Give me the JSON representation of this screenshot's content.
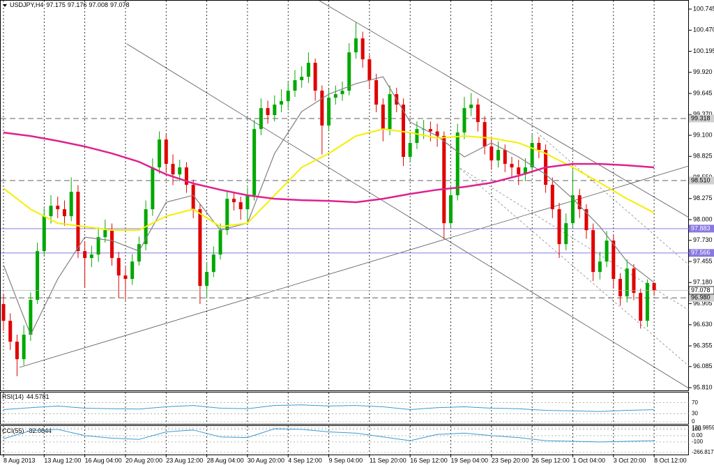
{
  "chart_data": {
    "type": "candlestick",
    "title": "USDJPY,H4",
    "up_color": "#00a800",
    "down_color": "#e00000",
    "grid": "x",
    "ylim": [
      95.774,
      100.827
    ],
    "yticks": [
      100.745,
      {
        "value": 100.47,
        "label": "100.470"
      },
      100.195,
      {
        "value": 99.92,
        "label": "99.920"
      },
      99.645,
      {
        "value": 99.37,
        "label": "99.370"
      },
      {
        "value": 99.1,
        "label": "99.100"
      },
      98.825,
      {
        "value": 98.55,
        "label": "98.550"
      },
      98.275,
      {
        "value": 98,
        "label": "98.000"
      },
      {
        "value": 97.73,
        "label": "97.730"
      },
      97.455,
      {
        "value": 97.18,
        "label": "97.180"
      },
      96.905,
      {
        "value": 96.63,
        "label": "96.630"
      },
      96.355,
      96.085,
      {
        "value": 95.81,
        "label": "95.810"
      }
    ],
    "categories": [
      "8 Aug 2013",
      null,
      null,
      null,
      null,
      null,
      "13 Aug 12:00",
      null,
      null,
      null,
      null,
      null,
      "16 Aug 04:00",
      null,
      null,
      null,
      null,
      null,
      "20 Aug 20:00",
      null,
      null,
      null,
      null,
      null,
      "23 Aug 12:00",
      null,
      null,
      null,
      null,
      null,
      "28 Aug 04:00",
      null,
      null,
      null,
      null,
      null,
      "30 Aug 20:00",
      null,
      null,
      null,
      null,
      null,
      "4 Sep 12:00",
      null,
      null,
      null,
      null,
      null,
      "9 Sep 04:00",
      null,
      null,
      null,
      null,
      null,
      "11 Sep 20:00",
      null,
      null,
      null,
      null,
      null,
      "16 Sep 12:00",
      null,
      null,
      null,
      null,
      null,
      "19 Sep 04:00",
      null,
      null,
      null,
      null,
      null,
      "23 Sep 20:00",
      null,
      null,
      null,
      null,
      null,
      "26 Sep 12:00",
      null,
      null,
      null,
      null,
      null,
      "1 Oct 04:00",
      null,
      null,
      null,
      null,
      null,
      "3 Oct 20:00",
      null,
      null,
      null,
      null,
      null,
      "8 Oct 12:00"
    ],
    "open": [
      96.9,
      96.681,
      96.409,
      96.181,
      96.5,
      96.954,
      97.59,
      98.045,
      98.181,
      98.136,
      98.045,
      98.363,
      97.59,
      97.5,
      97.545,
      97.772,
      97.863,
      97.5,
      97.272,
      97.227,
      97.454,
      97.681,
      98.136,
      98.681,
      99.045,
      98.727,
      98.59,
      98.681,
      98.454,
      98.136,
      97.136,
      97.318,
      97.545,
      97.863,
      98.272,
      98.227,
      98.136,
      98.318,
      99.181,
      99.454,
      99.363,
      99.5,
      99.545,
      99.681,
      99.818,
      99.863,
      100.045,
      99.681,
      99.227,
      99.59,
      99.636,
      99.681,
      100.181,
      100.363,
      100.09,
      99.818,
      99.5,
      99.181,
      99.636,
      99.5,
      98.818,
      99.0,
      99.181,
      99.181,
      99.15,
      99.09,
      97.954,
      98.318,
      99.136,
      99.454,
      99.5,
      99.272,
      98.954,
      98.772,
      98.909,
      98.727,
      98.681,
      98.59,
      98.681,
      99.0,
      98.909,
      98.454,
      98.136,
      97.681,
      97.954,
      98.318,
      98.136,
      97.863,
      97.318,
      97.454,
      97.727,
      97.227,
      97.0,
      97.363,
      97.045,
      96.681,
      97.175
    ],
    "high": [
      97.02,
      96.78,
      96.5,
      96.62,
      97.05,
      97.7,
      98.15,
      98.32,
      98.3,
      98.25,
      98.55,
      98.45,
      97.72,
      97.66,
      97.9,
      98.0,
      97.95,
      97.58,
      97.38,
      97.55,
      97.78,
      98.25,
      98.8,
      99.15,
      99.12,
      98.85,
      98.78,
      98.75,
      98.52,
      98.2,
      97.45,
      97.65,
      97.95,
      98.38,
      98.35,
      98.3,
      98.42,
      99.3,
      99.58,
      99.55,
      99.62,
      99.7,
      99.8,
      99.95,
      100.0,
      100.18,
      100.1,
      99.75,
      99.7,
      99.75,
      99.8,
      100.3,
      100.57,
      100.45,
      100.15,
      99.9,
      99.58,
      99.75,
      99.72,
      99.58,
      99.12,
      99.28,
      99.3,
      99.28,
      99.25,
      99.15,
      98.45,
      99.25,
      99.6,
      99.65,
      99.58,
      99.35,
      99.05,
      99.02,
      98.98,
      98.82,
      98.78,
      98.8,
      99.12,
      99.08,
      98.98,
      98.55,
      98.22,
      98.08,
      98.65,
      98.4,
      98.2,
      97.95,
      97.58,
      97.85,
      97.8,
      97.3,
      97.48,
      97.42,
      97.1,
      97.22,
      97.176
    ],
    "low": [
      96.55,
      96.3,
      95.96,
      96.1,
      96.42,
      96.9,
      97.52,
      97.95,
      98.02,
      97.92,
      97.98,
      97.5,
      97.12,
      97.38,
      97.45,
      97.7,
      97.4,
      96.98,
      96.95,
      97.15,
      97.4,
      97.6,
      98.05,
      98.6,
      98.62,
      98.45,
      98.5,
      98.35,
      98.02,
      96.9,
      96.98,
      97.25,
      97.48,
      97.8,
      98.12,
      98.0,
      97.98,
      98.25,
      99.1,
      99.25,
      99.28,
      99.4,
      99.45,
      99.6,
      99.72,
      99.78,
      99.55,
      98.85,
      99.15,
      99.5,
      99.55,
      99.62,
      100.1,
      99.98,
      99.7,
      99.4,
      99.02,
      99.1,
      99.4,
      98.7,
      98.75,
      98.92,
      99.05,
      99.02,
      98.95,
      97.75,
      97.88,
      98.25,
      99.05,
      99.35,
      99.15,
      98.85,
      98.65,
      98.68,
      98.62,
      98.55,
      98.45,
      98.5,
      98.6,
      98.8,
      98.35,
      98.02,
      97.5,
      97.6,
      97.9,
      98.02,
      97.75,
      97.2,
      97.22,
      97.38,
      97.1,
      96.88,
      96.92,
      96.95,
      96.58,
      96.6,
      97.008
    ],
    "close": [
      96.681,
      96.409,
      96.181,
      96.5,
      96.954,
      97.59,
      98.045,
      98.181,
      98.136,
      98.045,
      98.363,
      97.59,
      97.5,
      97.545,
      97.772,
      97.863,
      97.5,
      97.272,
      97.227,
      97.454,
      97.681,
      98.136,
      98.681,
      99.045,
      98.727,
      98.59,
      98.681,
      98.454,
      98.136,
      97.136,
      97.318,
      97.545,
      97.863,
      98.272,
      98.227,
      98.136,
      98.318,
      99.181,
      99.454,
      99.363,
      99.5,
      99.545,
      99.681,
      99.818,
      99.863,
      100.045,
      99.681,
      99.227,
      99.59,
      99.636,
      99.681,
      100.181,
      100.363,
      100.09,
      99.818,
      99.5,
      99.181,
      99.636,
      99.5,
      98.818,
      99.0,
      99.181,
      99.181,
      99.15,
      99.09,
      97.954,
      98.318,
      99.136,
      99.454,
      99.5,
      99.272,
      98.954,
      98.772,
      98.909,
      98.727,
      98.681,
      98.59,
      98.681,
      99.0,
      98.909,
      98.454,
      98.136,
      97.681,
      97.954,
      98.318,
      98.136,
      97.863,
      97.318,
      97.454,
      97.727,
      97.227,
      97.0,
      97.363,
      97.045,
      96.681,
      97.175,
      97.078
    ],
    "sample_x": [
      0,
      4,
      8,
      12,
      16,
      20,
      24,
      28,
      32,
      36,
      40,
      44,
      48,
      52,
      56,
      60,
      64,
      68,
      72,
      76,
      80,
      84,
      88,
      92,
      96
    ],
    "overlays": [
      {
        "color": "#808080",
        "values": [
          97.409,
          96.5,
          97.227,
          97.772,
          97.727,
          97.59,
          98.227,
          98.318,
          97.863,
          97.954,
          98.863,
          99.409,
          99.636,
          99.772,
          99.863,
          99.272,
          99.09,
          98.818,
          99.0,
          98.818,
          98.59,
          98.272,
          97.909,
          97.454,
          97.181
        ]
      },
      {
        "color": "#f5ef00",
        "values": [
          98.409,
          98.136,
          97.954,
          97.909,
          97.863,
          97.863,
          98.045,
          98.136,
          97.909,
          97.954,
          98.318,
          98.681,
          98.863,
          99.09,
          99.181,
          99.136,
          99.063,
          99.09,
          99.063,
          99.0,
          98.863,
          98.681,
          98.481,
          98.272,
          98.09
        ]
      },
      {
        "color": "#e0208f",
        "values": [
          99.136,
          99.09,
          99.027,
          98.954,
          98.863,
          98.754,
          98.59,
          98.472,
          98.39,
          98.318,
          98.272,
          98.254,
          98.245,
          98.227,
          98.272,
          98.336,
          98.39,
          98.427,
          98.481,
          98.572,
          98.681,
          98.727,
          98.727,
          98.709,
          98.681
        ]
      }
    ],
    "levels": [
      {
        "value": 99.318,
        "color": "#606060",
        "dash": true
      },
      {
        "value": 98.51,
        "label": "98.510",
        "color": "#606060",
        "dash": true
      },
      {
        "value": 97.883,
        "color": "#8878e0",
        "dash": false
      },
      {
        "value": 97.566,
        "color": "#8878e0",
        "dash": false
      },
      {
        "value": 96.98,
        "label": "96.980",
        "color": "#606060",
        "dash": true
      }
    ],
    "indicators": [
      {
        "name": "RSI(14)",
        "color": "#3a9ad0",
        "ylim": [
          0,
          100
        ],
        "yticks": [
          70,
          30,
          0
        ],
        "values": [
          45,
          52,
          58,
          50,
          48,
          47,
          55,
          60,
          50,
          48,
          60,
          62,
          58,
          60,
          55,
          45,
          52,
          55,
          50,
          48,
          42,
          40,
          38,
          42,
          44.5781
        ]
      },
      {
        "name": "CCI(55)",
        "color": "#3a9ad0",
        "ylim": [
          -266.8172,
          120.9859
        ],
        "yticks": [
          120.9859,
          100,
          {
            "value": 0,
            "label": "0.00"
          },
          -100,
          -266.8172
        ],
        "values": [
          -50,
          80,
          100,
          0,
          -40,
          -60,
          60,
          90,
          -20,
          -30,
          110,
          100,
          60,
          40,
          -20,
          -80,
          20,
          40,
          0,
          -30,
          -80,
          -90,
          -100,
          -90,
          -82.0844
        ]
      }
    ]
  }
}
